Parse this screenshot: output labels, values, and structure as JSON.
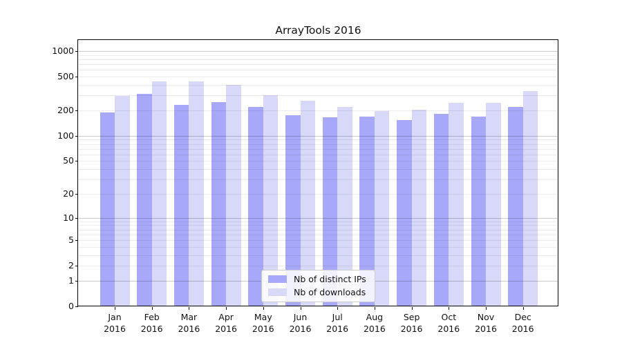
{
  "chart_data": {
    "type": "bar",
    "title": "ArrayTools 2016",
    "categories": [
      "Jan",
      "Feb",
      "Mar",
      "Apr",
      "May",
      "Jun",
      "Jul",
      "Aug",
      "Sep",
      "Oct",
      "Nov",
      "Dec"
    ],
    "year_label": "2016",
    "series": [
      {
        "name": "Nb of distinct IPs",
        "color": "#a8a8fa",
        "values": [
          190,
          315,
          231,
          251,
          218,
          176,
          165,
          170,
          154,
          181,
          170,
          221
        ]
      },
      {
        "name": "Nb of downloads",
        "color": "#d8d8f8",
        "values": [
          294,
          437,
          441,
          400,
          300,
          262,
          219,
          197,
          205,
          244,
          247,
          340
        ]
      }
    ],
    "xlabel": "",
    "ylabel": "",
    "yscale": "log10(value+1)",
    "yticks": [
      0,
      1,
      2,
      5,
      10,
      20,
      50,
      100,
      200,
      500,
      1000
    ],
    "minor_gridlines": [
      3,
      4,
      6,
      7,
      8,
      9,
      30,
      40,
      60,
      70,
      80,
      90,
      300,
      400,
      600,
      700,
      800,
      900
    ],
    "ylim": [
      0,
      1320
    ],
    "grid": true,
    "legend_position": "lower-center",
    "colors": {
      "grid_major": "#c9c9c9",
      "grid_minor": "#ededed",
      "axis": "#000000",
      "background": "#ffffff"
    }
  }
}
